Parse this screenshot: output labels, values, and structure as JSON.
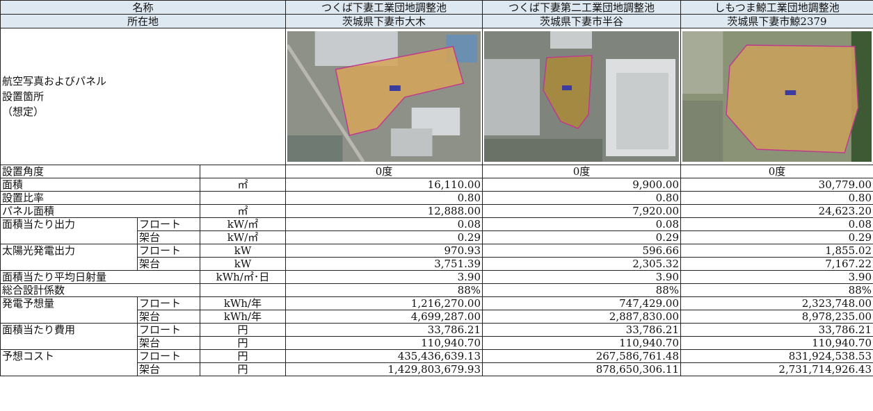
{
  "header": {
    "name_label": "名称",
    "location_label": "所在地",
    "sites": [
      {
        "name": "つくば下妻工業団地調整池",
        "location": "茨城県下妻市大木"
      },
      {
        "name": "つくば下妻第二工業団地調整池",
        "location": "茨城県下妻市半谷"
      },
      {
        "name": "しもつま鯨工業団地調整池",
        "location": "茨城県下妻市鯨2379"
      }
    ]
  },
  "photo_label": [
    "航空写真およびパネル",
    "設置箇所",
    "（想定）"
  ],
  "rows": [
    {
      "label": "設置角度",
      "values": [
        "0度",
        "0度",
        "0度"
      ]
    },
    {
      "label": "面積",
      "unit": "㎡",
      "values": [
        "16,110.00",
        "9,900.00",
        "30,779.00"
      ]
    },
    {
      "label": "設置比率",
      "values": [
        "0.80",
        "0.80",
        "0.80"
      ]
    },
    {
      "label": "パネル面積",
      "unit": "㎡",
      "values": [
        "12,888.00",
        "7,920.00",
        "24,623.20"
      ]
    },
    {
      "label": "面積当たり出力",
      "subrows": [
        {
          "sub": "フロート",
          "unit": "kW/㎡",
          "values": [
            "0.08",
            "0.08",
            "0.08"
          ]
        },
        {
          "sub": "架台",
          "unit": "kW/㎡",
          "values": [
            "0.29",
            "0.29",
            "0.29"
          ]
        }
      ]
    },
    {
      "label": "太陽光発電出力",
      "subrows": [
        {
          "sub": "フロート",
          "unit": "kW",
          "values": [
            "970.93",
            "596.66",
            "1,855.02"
          ]
        },
        {
          "sub": "架台",
          "unit": "kW",
          "values": [
            "3,751.39",
            "2,305.32",
            "7,167.22"
          ]
        }
      ]
    },
    {
      "label": "面積当たり平均日射量",
      "unit": "kWh/㎡･日",
      "values": [
        "3.90",
        "3.90",
        "3.90"
      ]
    },
    {
      "label": "総合設計係数",
      "values": [
        "88%",
        "88%",
        "88%"
      ]
    },
    {
      "label": "発電予想量",
      "subrows": [
        {
          "sub": "フロート",
          "unit": "kWh/年",
          "values": [
            "1,216,270.00",
            "747,429.00",
            "2,323,748.00"
          ]
        },
        {
          "sub": "架台",
          "unit": "kWh/年",
          "values": [
            "4,699,287.00",
            "2,887,830.00",
            "8,978,235.00"
          ]
        }
      ]
    },
    {
      "label": "面積当たり費用",
      "subrows": [
        {
          "sub": "フロート",
          "unit": "円",
          "values": [
            "33,786.21",
            "33,786.21",
            "33,786.21"
          ]
        },
        {
          "sub": "架台",
          "unit": "円",
          "values": [
            "110,940.70",
            "110,940.70",
            "110,940.70"
          ]
        }
      ]
    },
    {
      "label": "予想コスト",
      "subrows": [
        {
          "sub": "フロート",
          "unit": "円",
          "values": [
            "435,436,639.13",
            "267,586,761.48",
            "831,924,538.53"
          ]
        },
        {
          "sub": "架台",
          "unit": "円",
          "values": [
            "1,429,803,679.93",
            "878,650,306.11",
            "2,731,714,926.43"
          ]
        }
      ]
    }
  ]
}
